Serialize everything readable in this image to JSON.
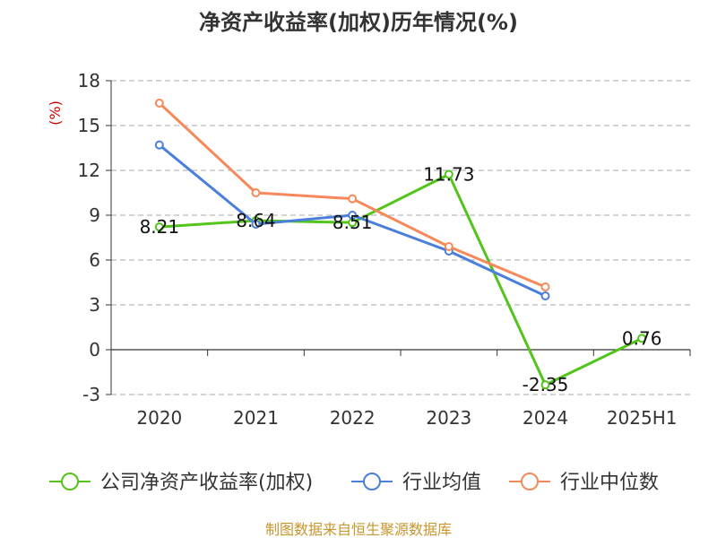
{
  "chart_data": {
    "type": "line",
    "title": "净资产收益率(加权)历年情况(%)",
    "y_unit_label": "(%)",
    "categories": [
      "2020",
      "2021",
      "2022",
      "2023",
      "2024",
      "2025H1"
    ],
    "y_ticks": [
      "18",
      "15",
      "12",
      "9",
      "6",
      "3",
      "0",
      "-3"
    ],
    "ylim": [
      -3,
      18
    ],
    "grid": true,
    "legend_position": "bottom",
    "series": [
      {
        "name": "公司净资产收益率(加权)",
        "color": "#52c41a",
        "values": [
          8.21,
          8.64,
          8.51,
          11.73,
          -2.35,
          0.76
        ],
        "labels": [
          "8.21",
          "8.64",
          "8.51",
          "11.73",
          "-2.35",
          "0.76"
        ]
      },
      {
        "name": "行业均值",
        "color": "#4a7fdc",
        "values": [
          13.7,
          8.4,
          9.0,
          6.6,
          3.6,
          null
        ]
      },
      {
        "name": "行业中位数",
        "color": "#f5895a",
        "values": [
          16.5,
          10.5,
          10.1,
          6.9,
          4.2,
          null
        ]
      }
    ]
  },
  "source": "制图数据来自恒生聚源数据库"
}
